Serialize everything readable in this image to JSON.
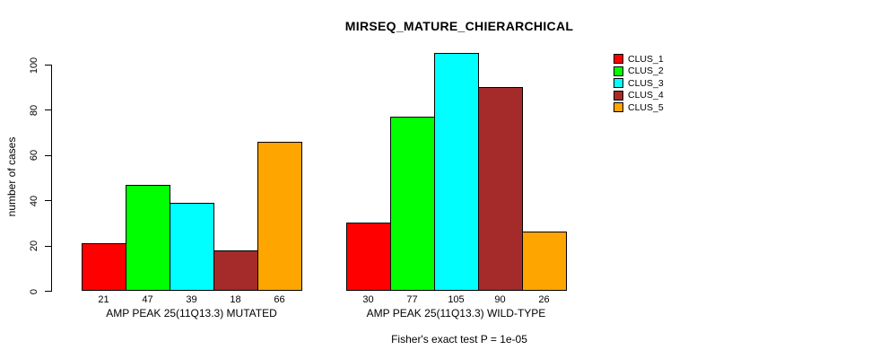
{
  "chart_data": {
    "type": "bar",
    "title": "MIRSEQ_MATURE_CHIERARCHICAL",
    "ylabel": "number of cases",
    "xlabel": "",
    "ylim": [
      0,
      105
    ],
    "yticks": [
      0,
      20,
      40,
      60,
      80,
      100
    ],
    "grid": false,
    "legend_position": "right",
    "categories": [
      "AMP PEAK 25(11Q13.3) MUTATED",
      "AMP PEAK 25(11Q13.3) WILD-TYPE"
    ],
    "series": [
      {
        "name": "CLUS_1",
        "color": "#FF0000",
        "values": [
          21,
          30
        ]
      },
      {
        "name": "CLUS_2",
        "color": "#00FF00",
        "values": [
          47,
          77
        ]
      },
      {
        "name": "CLUS_3",
        "color": "#00FFFF",
        "values": [
          39,
          105
        ]
      },
      {
        "name": "CLUS_4",
        "color": "#A52A2A",
        "values": [
          18,
          90
        ]
      },
      {
        "name": "CLUS_5",
        "color": "#FFA500",
        "values": [
          66,
          26
        ]
      }
    ],
    "bar_value_labels_shown": true,
    "axis_color": "#000000",
    "bar_border_color": "#000000",
    "annotation": "Fisher's exact test P = 1e-05"
  }
}
